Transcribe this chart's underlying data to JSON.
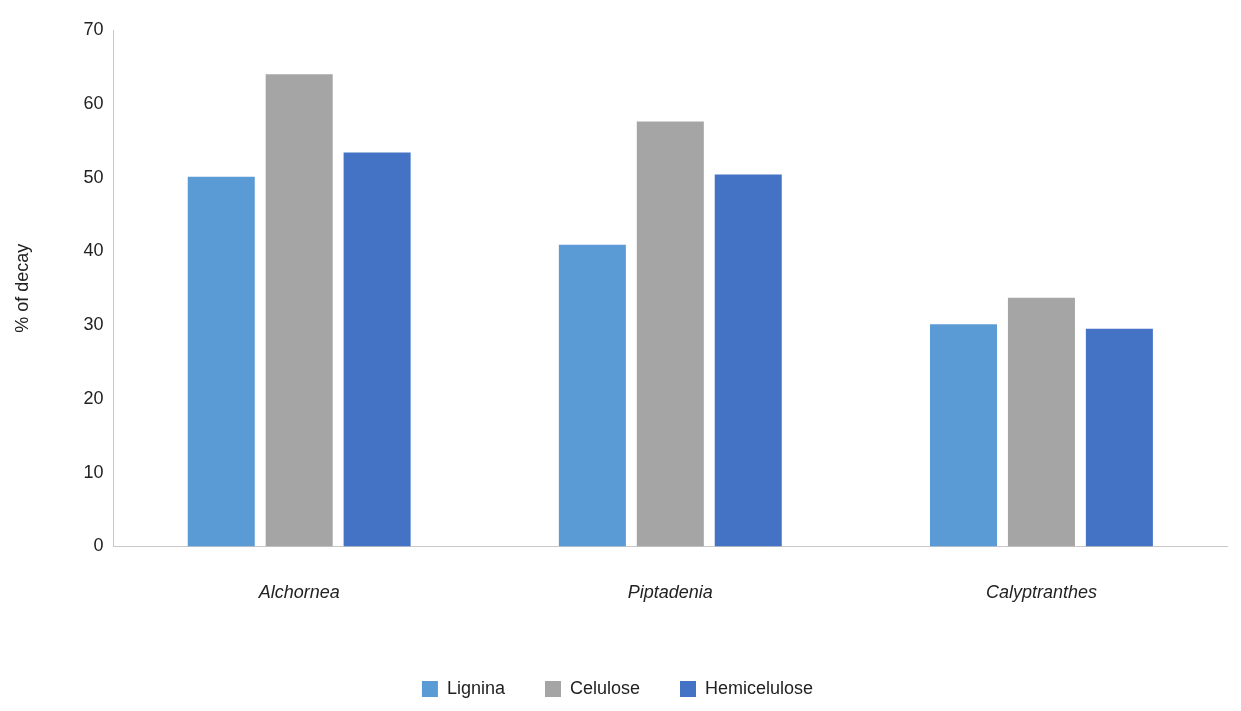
{
  "chart_data": {
    "type": "bar",
    "ylabel": "% of decay",
    "categories": [
      "Alchornea",
      "Piptadenia",
      "Calyptranthes"
    ],
    "series": [
      {
        "name": "Lignina",
        "color": "#5b9bd5",
        "values": [
          50.1,
          40.9,
          30.1
        ]
      },
      {
        "name": "Celulose",
        "color": "#a5a5a5",
        "values": [
          64.0,
          57.6,
          33.7
        ]
      },
      {
        "name": "Hemicelulose",
        "color": "#4472c4",
        "values": [
          53.4,
          50.4,
          29.5
        ]
      }
    ],
    "ylim": [
      0,
      70
    ],
    "yticks": [
      0,
      10,
      20,
      30,
      40,
      50,
      60,
      70
    ],
    "grid": false,
    "legend": "bottom"
  }
}
